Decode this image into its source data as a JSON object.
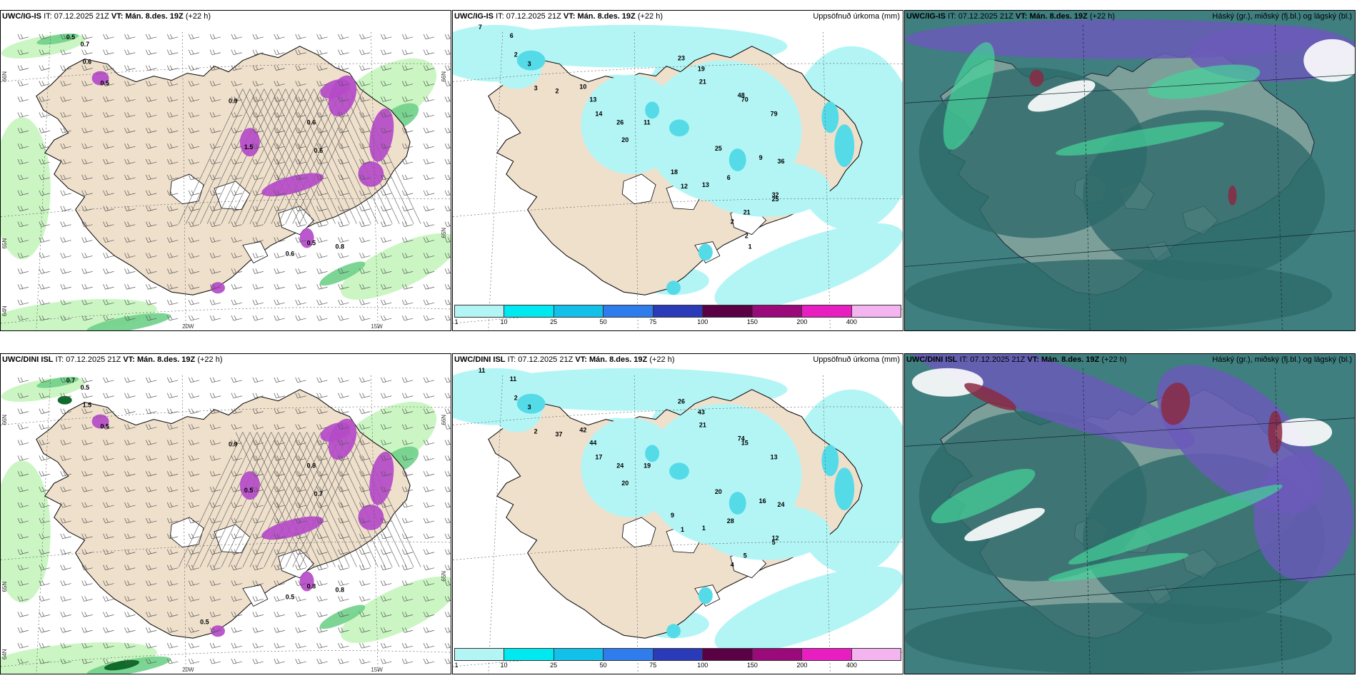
{
  "rows": [
    {
      "model": "UWC/IG-IS",
      "panels": [
        {
          "type": "wind",
          "it_label": "IT:",
          "it": "07.12.2025 21Z",
          "vt_label": "VT:",
          "vt": "Mán. 8.des. 19Z",
          "lead": "(+22 h)",
          "right_title": "",
          "values": [
            "0.5",
            "0.7",
            "0.6",
            "0.5",
            "0.9",
            "1.5",
            "0.6",
            "0.6",
            "0.5",
            "0.8",
            "0.6"
          ],
          "axis": [
            "66N",
            "65N",
            "64N",
            "20W",
            "15W",
            "65N",
            "66N"
          ]
        },
        {
          "type": "precip",
          "it_label": "IT:",
          "it": "07.12.2025 21Z",
          "vt_label": "VT:",
          "vt": "Mán. 8.des. 19Z",
          "lead": "(+22 h)",
          "right_title": "Uppsöfnuð úrkoma (mm)",
          "values": [
            "7",
            "6",
            "2",
            "3",
            "3",
            "2",
            "10",
            "13",
            "14",
            "26",
            "20",
            "11",
            "23",
            "19",
            "21",
            "48",
            "70",
            "79",
            "25",
            "6",
            "9",
            "36",
            "18",
            "12",
            "13",
            "32",
            "25",
            "21",
            "2",
            "2",
            "1"
          ]
        },
        {
          "type": "cloud",
          "it_label": "IT:",
          "it": "07.12.2025 21Z",
          "vt_label": "VT:",
          "vt": "Mán. 8.des. 19Z",
          "lead": "(+22 h)",
          "right_title": "Háský (gr.), miðský (fj.bl.) og lágský (bl.)"
        }
      ]
    },
    {
      "model": "UWC/DINI ISL",
      "panels": [
        {
          "type": "wind",
          "it_label": "IT:",
          "it": "07.12.2025 21Z",
          "vt_label": "VT:",
          "vt": "Mán. 8.des. 19Z",
          "lead": "(+22 h)",
          "right_title": "",
          "values": [
            "0.7",
            "0.5",
            "1.5",
            "0.5",
            "0.9",
            "0.5",
            "0.8",
            "0.7",
            "0.8",
            "0.8",
            "0.5",
            "0.5"
          ],
          "axis": [
            "66N",
            "65N",
            "64N",
            "20W",
            "15W",
            "65N",
            "66N"
          ]
        },
        {
          "type": "precip",
          "it_label": "IT:",
          "it": "07.12.2025 21Z",
          "vt_label": "VT:",
          "vt": "Mán. 8.des. 19Z",
          "lead": "(+22 h)",
          "right_title": "Uppsöfnuð úrkoma (mm)",
          "values": [
            "11",
            "11",
            "2",
            "3",
            "2",
            "37",
            "42",
            "44",
            "17",
            "24",
            "20",
            "19",
            "26",
            "43",
            "21",
            "74",
            "15",
            "13",
            "20",
            "28",
            "16",
            "24",
            "9",
            "1",
            "1",
            "12",
            "5",
            "5",
            "4"
          ]
        },
        {
          "type": "cloud",
          "it_label": "IT:",
          "it": "07.12.2025 21Z",
          "vt_label": "VT:",
          "vt": "Mán. 8.des. 19Z",
          "lead": "(+22 h)",
          "right_title": "Háský (gr.), miðský (fj.bl.) og lágský (bl.)"
        }
      ]
    }
  ],
  "colorbar": {
    "ticks": [
      "1",
      "10",
      "25",
      "50",
      "75",
      "100",
      "150",
      "200",
      "400"
    ],
    "colors": [
      "#b3f5f5",
      "#00e8f0",
      "#12c0ea",
      "#2f7cec",
      "#2a3ab8",
      "#5a0045",
      "#9a0a7a",
      "#e81ec0",
      "#f4b4f0"
    ]
  },
  "colors": {
    "land": "#efe0cc",
    "coast": "#000000",
    "green_light": "#c8f5c0",
    "green_mid": "#6fd08a",
    "green_dark": "#106a2a",
    "purple": "#b44ac8",
    "precip_light": "#b3f5f5",
    "precip_mid": "#55dbe8",
    "cloud_teal": "#3f7f7f",
    "cloud_purple": "#6a5ab8",
    "cloud_red": "#8a2a44",
    "cloud_green": "#46d39a"
  }
}
